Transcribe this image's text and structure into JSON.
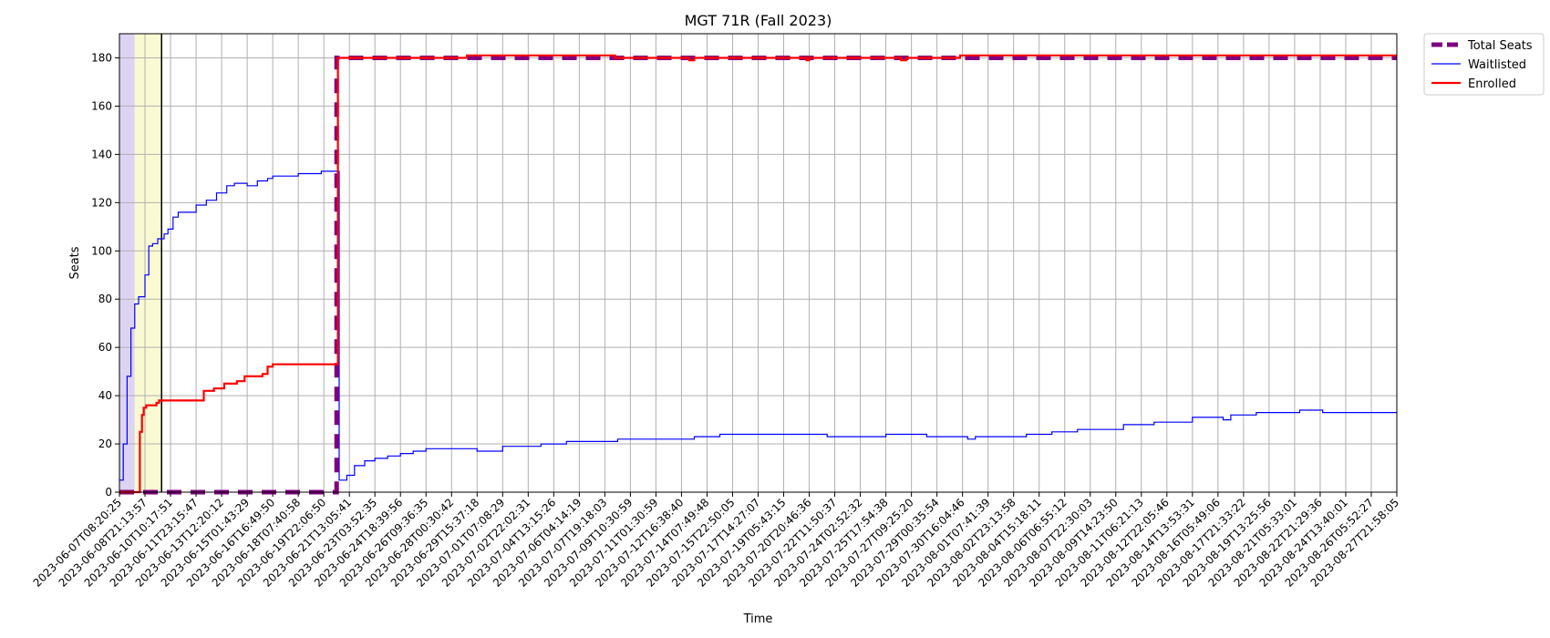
{
  "chart_data": {
    "type": "line",
    "title": "MGT 71R (Fall 2023)",
    "xlabel": "Time",
    "ylabel": "Seats",
    "ylim": [
      0,
      190
    ],
    "yticks": [
      0,
      20,
      40,
      60,
      80,
      100,
      120,
      140,
      160,
      180
    ],
    "grid": true,
    "legend_position": "outside-top-right",
    "x_tick_labels": [
      "2023-06-07T08:20:25",
      "2023-06-08T21:13:57",
      "2023-06-10T10:17:51",
      "2023-06-11T23:15:47",
      "2023-06-13T12:20:12",
      "2023-06-15T01:43:29",
      "2023-06-16T16:49:50",
      "2023-06-18T07:40:58",
      "2023-06-19T22:06:50",
      "2023-06-21T13:05:41",
      "2023-06-23T03:52:35",
      "2023-06-24T18:39:56",
      "2023-06-26T09:36:35",
      "2023-06-28T00:30:42",
      "2023-06-29T15:37:18",
      "2023-07-01T07:08:29",
      "2023-07-02T22:02:31",
      "2023-07-04T13:15:26",
      "2023-07-06T04:14:19",
      "2023-07-07T19:18:03",
      "2023-07-09T10:30:59",
      "2023-07-11T01:30:59",
      "2023-07-12T16:38:40",
      "2023-07-14T07:49:48",
      "2023-07-15T22:50:05",
      "2023-07-17T14:27:07",
      "2023-07-19T05:43:15",
      "2023-07-20T20:46:36",
      "2023-07-22T11:50:37",
      "2023-07-24T02:52:32",
      "2023-07-25T17:54:38",
      "2023-07-27T09:25:20",
      "2023-07-29T00:35:54",
      "2023-07-30T16:04:46",
      "2023-08-01T07:41:39",
      "2023-08-02T23:13:58",
      "2023-08-04T15:18:11",
      "2023-08-06T06:55:12",
      "2023-08-07T22:30:03",
      "2023-08-09T14:23:50",
      "2023-08-11T06:21:13",
      "2023-08-12T22:05:46",
      "2023-08-14T13:53:31",
      "2023-08-16T05:49:06",
      "2023-08-17T21:33:22",
      "2023-08-19T13:25:56",
      "2023-08-21T05:33:01",
      "2023-08-22T21:29:36",
      "2023-08-24T13:40:01",
      "2023-08-26T05:52:27",
      "2023-08-27T21:58:05"
    ],
    "x_range": [
      0,
      50
    ],
    "shaded_spans": [
      {
        "x0": 0,
        "x1": 0.6,
        "color": "#ddd3f3"
      },
      {
        "x0": 0.6,
        "x1": 1.65,
        "color": "#fafad2"
      }
    ],
    "vertical_lines": [
      {
        "x": 1.65,
        "color": "#000000"
      }
    ],
    "series": [
      {
        "name": "Total Seats",
        "color": "#800080",
        "style": "dashed-thick",
        "points": [
          [
            0,
            0
          ],
          [
            8.5,
            0
          ],
          [
            8.5,
            180
          ],
          [
            50,
            180
          ]
        ]
      },
      {
        "name": "Waitlisted",
        "color": "#0000ff",
        "style": "thin",
        "points": [
          [
            0,
            5
          ],
          [
            0.15,
            20
          ],
          [
            0.3,
            48
          ],
          [
            0.45,
            68
          ],
          [
            0.6,
            78
          ],
          [
            0.75,
            81
          ],
          [
            0.9,
            81
          ],
          [
            1.0,
            90
          ],
          [
            1.15,
            102
          ],
          [
            1.3,
            103
          ],
          [
            1.5,
            105
          ],
          [
            1.75,
            107
          ],
          [
            1.9,
            109
          ],
          [
            2.1,
            114
          ],
          [
            2.3,
            116
          ],
          [
            2.9,
            116
          ],
          [
            3.0,
            119
          ],
          [
            3.4,
            121
          ],
          [
            3.8,
            124
          ],
          [
            4.2,
            127
          ],
          [
            4.5,
            128
          ],
          [
            4.8,
            128
          ],
          [
            5.0,
            127
          ],
          [
            5.4,
            129
          ],
          [
            5.8,
            130
          ],
          [
            6.0,
            131
          ],
          [
            6.9,
            131
          ],
          [
            7.0,
            132
          ],
          [
            7.8,
            132
          ],
          [
            7.9,
            133
          ],
          [
            8.5,
            133
          ],
          [
            8.6,
            5
          ],
          [
            8.9,
            7
          ],
          [
            9.2,
            11
          ],
          [
            9.6,
            13
          ],
          [
            10.0,
            14
          ],
          [
            10.5,
            15
          ],
          [
            11.0,
            16
          ],
          [
            11.5,
            17
          ],
          [
            12.0,
            18
          ],
          [
            13.0,
            18
          ],
          [
            14.0,
            17
          ],
          [
            15.0,
            19
          ],
          [
            16.0,
            19
          ],
          [
            16.5,
            20
          ],
          [
            17.0,
            20
          ],
          [
            17.5,
            21
          ],
          [
            19.0,
            21
          ],
          [
            19.5,
            22
          ],
          [
            22.0,
            22
          ],
          [
            22.5,
            23
          ],
          [
            23.0,
            23
          ],
          [
            23.5,
            24
          ],
          [
            27.5,
            24
          ],
          [
            27.7,
            23
          ],
          [
            29.5,
            23
          ],
          [
            30.0,
            24
          ],
          [
            31.5,
            24
          ],
          [
            31.6,
            23
          ],
          [
            33.0,
            23
          ],
          [
            33.2,
            22
          ],
          [
            33.5,
            23
          ],
          [
            35.0,
            23
          ],
          [
            35.5,
            24
          ],
          [
            36.0,
            24
          ],
          [
            36.5,
            25
          ],
          [
            37.0,
            25
          ],
          [
            37.5,
            26
          ],
          [
            39.0,
            26
          ],
          [
            39.3,
            28
          ],
          [
            40.3,
            28
          ],
          [
            40.5,
            29
          ],
          [
            41.5,
            29
          ],
          [
            42.0,
            31
          ],
          [
            43.0,
            31
          ],
          [
            43.2,
            30
          ],
          [
            43.5,
            32
          ],
          [
            44.0,
            32
          ],
          [
            44.5,
            33
          ],
          [
            46.0,
            33
          ],
          [
            46.2,
            34
          ],
          [
            47.0,
            34
          ],
          [
            47.1,
            33
          ],
          [
            50.0,
            33
          ]
        ]
      },
      {
        "name": "Enrolled",
        "color": "#ff0000",
        "style": "medium",
        "points": [
          [
            0,
            0
          ],
          [
            0.7,
            0
          ],
          [
            0.75,
            0
          ],
          [
            0.8,
            25
          ],
          [
            0.88,
            32
          ],
          [
            0.95,
            35
          ],
          [
            1.05,
            36
          ],
          [
            1.3,
            36
          ],
          [
            1.45,
            37
          ],
          [
            1.55,
            38
          ],
          [
            3.2,
            38
          ],
          [
            3.3,
            42
          ],
          [
            3.7,
            43
          ],
          [
            4.1,
            45
          ],
          [
            4.6,
            46
          ],
          [
            4.9,
            48
          ],
          [
            5.6,
            49
          ],
          [
            5.8,
            52
          ],
          [
            6.0,
            53
          ],
          [
            8.5,
            53
          ],
          [
            8.55,
            180
          ],
          [
            13.5,
            180
          ],
          [
            13.6,
            181
          ],
          [
            19.3,
            181
          ],
          [
            19.4,
            180
          ],
          [
            22.2,
            180
          ],
          [
            22.3,
            179
          ],
          [
            22.5,
            180
          ],
          [
            26.8,
            180
          ],
          [
            26.9,
            179
          ],
          [
            27.0,
            180
          ],
          [
            30.5,
            180
          ],
          [
            30.6,
            179
          ],
          [
            30.8,
            180
          ],
          [
            32.8,
            180
          ],
          [
            32.9,
            181
          ],
          [
            50,
            181
          ]
        ]
      }
    ]
  }
}
